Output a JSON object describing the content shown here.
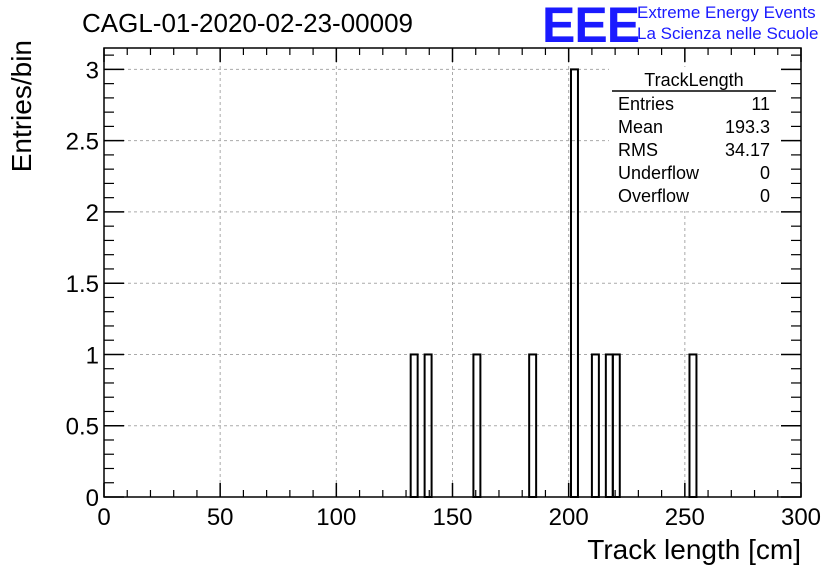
{
  "header": {
    "title": "CAGL-01-2020-02-23-00009",
    "logo_text": "EEE",
    "logo_line1": "Extreme Energy Events",
    "logo_line2": "La Scienza nelle Scuole"
  },
  "colors": {
    "logo": "#1a1aff",
    "axis": "#000000",
    "grid": "#aaaaaa",
    "histogram": "#000000"
  },
  "chart_data": {
    "type": "bar",
    "xlabel": "Track length [cm]",
    "ylabel": "Entries/bin",
    "xlim": [
      0,
      300
    ],
    "ylim": [
      0,
      3.15
    ],
    "bin_width": 3,
    "grid": true,
    "x_ticks": [
      "0",
      "50",
      "100",
      "150",
      "200",
      "250",
      "300"
    ],
    "y_ticks": [
      "0",
      "0.5",
      "1",
      "1.5",
      "2",
      "2.5",
      "3"
    ],
    "bins": [
      {
        "x_low": 132,
        "count": 1
      },
      {
        "x_low": 138,
        "count": 1
      },
      {
        "x_low": 159,
        "count": 1
      },
      {
        "x_low": 183,
        "count": 1
      },
      {
        "x_low": 201,
        "count": 3
      },
      {
        "x_low": 210,
        "count": 1
      },
      {
        "x_low": 216,
        "count": 1
      },
      {
        "x_low": 219,
        "count": 1
      },
      {
        "x_low": 252,
        "count": 1
      }
    ],
    "stats": {
      "name": "TrackLength",
      "entries": [
        {
          "label": "Entries",
          "value": "11"
        },
        {
          "label": "Mean",
          "value": "193.3"
        },
        {
          "label": "RMS",
          "value": "34.17"
        },
        {
          "label": "Underflow",
          "value": "0"
        },
        {
          "label": "Overflow",
          "value": "0"
        }
      ]
    }
  }
}
